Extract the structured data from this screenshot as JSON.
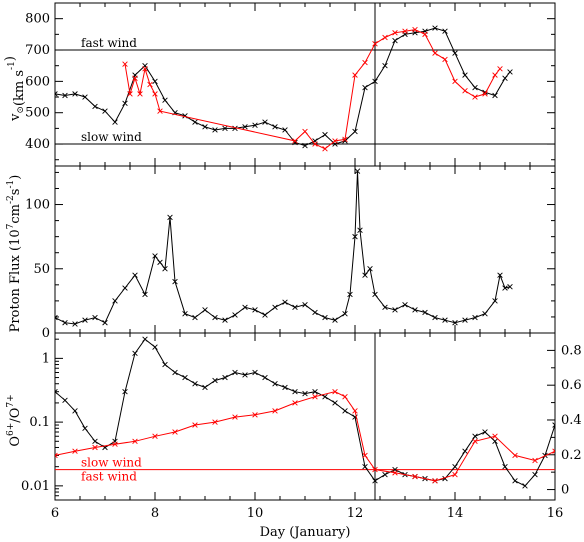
{
  "chart_data": [
    {
      "type": "line",
      "panel": "speed",
      "ylabel": "v",
      "ylabel_sub": "⊙",
      "ylabel_unit": "(km s",
      "ylabel_sup": "-1",
      "ylabel_close": ")",
      "xlim": [
        6,
        16
      ],
      "ylim": [
        330,
        850
      ],
      "yticks": [
        400,
        500,
        600,
        700,
        800
      ],
      "hlines": [
        {
          "y": 700,
          "label": "fast wind"
        },
        {
          "y": 400,
          "label": "slow wind"
        }
      ],
      "vline_x": 12.4,
      "series": [
        {
          "color": "#000000",
          "x": [
            6.0,
            6.2,
            6.4,
            6.6,
            6.8,
            7.0,
            7.2,
            7.4,
            7.6,
            7.8,
            8.0,
            8.2,
            8.4,
            8.6,
            8.8,
            9.0,
            9.2,
            9.4,
            9.6,
            9.8,
            10.0,
            10.2,
            10.4,
            10.6,
            10.8,
            11.0,
            11.2,
            11.4,
            11.6,
            11.8,
            12.0,
            12.2,
            12.4,
            12.6,
            12.8,
            13.0,
            13.2,
            13.4,
            13.6,
            13.8,
            14.0,
            14.2,
            14.4,
            14.6,
            14.8,
            15.0,
            15.1
          ],
          "y": [
            560,
            555,
            560,
            550,
            520,
            505,
            470,
            530,
            620,
            650,
            600,
            540,
            500,
            490,
            470,
            455,
            445,
            450,
            450,
            455,
            460,
            470,
            455,
            445,
            405,
            395,
            410,
            430,
            400,
            410,
            440,
            580,
            600,
            650,
            730,
            750,
            755,
            760,
            770,
            760,
            690,
            620,
            580,
            565,
            555,
            610,
            630
          ]
        },
        {
          "color": "#ff0000",
          "x": [
            7.4,
            7.5,
            7.6,
            7.7,
            7.8,
            7.9,
            8.0,
            8.1,
            10.8,
            11.0,
            11.2,
            11.4,
            11.6,
            11.8,
            12.0,
            12.2,
            12.4,
            12.6,
            12.8,
            13.0,
            13.2,
            13.4,
            13.6,
            13.8,
            14.0,
            14.2,
            14.4,
            14.6,
            14.8,
            14.9
          ],
          "y": [
            655,
            560,
            610,
            560,
            640,
            590,
            560,
            505,
            410,
            440,
            400,
            385,
            410,
            415,
            620,
            660,
            720,
            740,
            755,
            760,
            765,
            750,
            690,
            670,
            600,
            570,
            550,
            560,
            620,
            640
          ]
        }
      ]
    },
    {
      "type": "line",
      "panel": "flux",
      "ylabel": "Proton Flux (10",
      "ylabel_sup": "7",
      "ylabel_mid": "cm",
      "ylabel_sup2": "-2",
      "ylabel_end": "s",
      "ylabel_sup3": "-1",
      "ylabel_close": ")",
      "xlim": [
        6,
        16
      ],
      "ylim": [
        0,
        130
      ],
      "yticks": [
        0,
        50,
        100
      ],
      "yticks_minor_labels": [
        0,
        50,
        100
      ],
      "series": [
        {
          "color": "#000000",
          "x": [
            6.0,
            6.2,
            6.4,
            6.6,
            6.8,
            7.0,
            7.2,
            7.4,
            7.6,
            7.8,
            8.0,
            8.1,
            8.2,
            8.3,
            8.4,
            8.6,
            8.8,
            9.0,
            9.2,
            9.4,
            9.6,
            9.8,
            10.0,
            10.2,
            10.4,
            10.6,
            10.8,
            11.0,
            11.2,
            11.4,
            11.6,
            11.8,
            11.9,
            12.0,
            12.05,
            12.1,
            12.2,
            12.3,
            12.4,
            12.6,
            12.8,
            13.0,
            13.2,
            13.4,
            13.6,
            13.8,
            14.0,
            14.2,
            14.4,
            14.6,
            14.8,
            14.9,
            15.0,
            15.1
          ],
          "y": [
            12,
            8,
            7,
            10,
            12,
            8,
            25,
            35,
            45,
            30,
            60,
            55,
            50,
            90,
            40,
            15,
            12,
            18,
            12,
            10,
            14,
            20,
            18,
            14,
            20,
            24,
            20,
            22,
            16,
            12,
            10,
            15,
            30,
            75,
            126,
            80,
            45,
            50,
            30,
            20,
            18,
            22,
            18,
            16,
            12,
            10,
            8,
            10,
            12,
            15,
            25,
            45,
            35,
            36
          ]
        }
      ]
    },
    {
      "type": "line",
      "panel": "ratio",
      "ylabel": "O",
      "ylabel_sup": "6+",
      "ylabel_mid": "/O",
      "ylabel_sup2": "7+",
      "log_y": true,
      "xlim": [
        6,
        16
      ],
      "ylim_left": [
        0.006,
        2.5
      ],
      "ylim_right": [
        0,
        0.9
      ],
      "yticks_left": [
        "0.01",
        "0.1",
        "1"
      ],
      "yticks_right": [
        "0",
        "0.2",
        "0.4",
        "0.6",
        "0.8"
      ],
      "xticks": [
        6,
        8,
        10,
        12,
        14,
        16
      ],
      "xlabel": "Day (January)",
      "hline_y": 0.018,
      "hline_labels": [
        {
          "label": "slow wind",
          "color": "#ff0000"
        },
        {
          "label": "fast wind",
          "color": "#ff0000"
        }
      ],
      "vline_x": 12.4,
      "series": [
        {
          "color": "#000000",
          "x": [
            6.0,
            6.2,
            6.4,
            6.6,
            6.8,
            7.0,
            7.2,
            7.4,
            7.6,
            7.8,
            8.0,
            8.2,
            8.4,
            8.6,
            8.8,
            9.0,
            9.2,
            9.4,
            9.6,
            9.8,
            10.0,
            10.2,
            10.4,
            10.6,
            10.8,
            11.0,
            11.2,
            11.4,
            11.6,
            11.8,
            12.0,
            12.2,
            12.4,
            12.6,
            12.8,
            13.0,
            13.2,
            13.4,
            13.6,
            13.8,
            14.0,
            14.2,
            14.4,
            14.6,
            14.8,
            15.0,
            15.2,
            15.4,
            15.6,
            15.8,
            16.0
          ],
          "y": [
            0.3,
            0.22,
            0.15,
            0.08,
            0.05,
            0.04,
            0.05,
            0.3,
            1.2,
            2.0,
            1.5,
            0.8,
            0.6,
            0.5,
            0.4,
            0.35,
            0.45,
            0.5,
            0.6,
            0.55,
            0.6,
            0.5,
            0.4,
            0.35,
            0.3,
            0.28,
            0.3,
            0.25,
            0.2,
            0.15,
            0.12,
            0.02,
            0.012,
            0.015,
            0.018,
            0.015,
            0.014,
            0.013,
            0.012,
            0.013,
            0.02,
            0.035,
            0.06,
            0.07,
            0.05,
            0.02,
            0.012,
            0.01,
            0.015,
            0.03,
            0.09
          ]
        },
        {
          "color": "#ff0000",
          "x": [
            6.0,
            6.4,
            6.8,
            7.2,
            7.6,
            8.0,
            8.4,
            8.8,
            9.2,
            9.6,
            10.0,
            10.4,
            10.8,
            11.2,
            11.6,
            11.8,
            12.0,
            12.2,
            12.4,
            12.8,
            13.2,
            13.6,
            14.0,
            14.4,
            14.8,
            15.2,
            15.6,
            16.0
          ],
          "y": [
            0.03,
            0.035,
            0.04,
            0.045,
            0.05,
            0.06,
            0.07,
            0.09,
            0.1,
            0.12,
            0.13,
            0.15,
            0.2,
            0.25,
            0.3,
            0.25,
            0.15,
            0.03,
            0.018,
            0.016,
            0.014,
            0.012,
            0.015,
            0.05,
            0.06,
            0.03,
            0.025,
            0.035
          ]
        }
      ]
    }
  ]
}
